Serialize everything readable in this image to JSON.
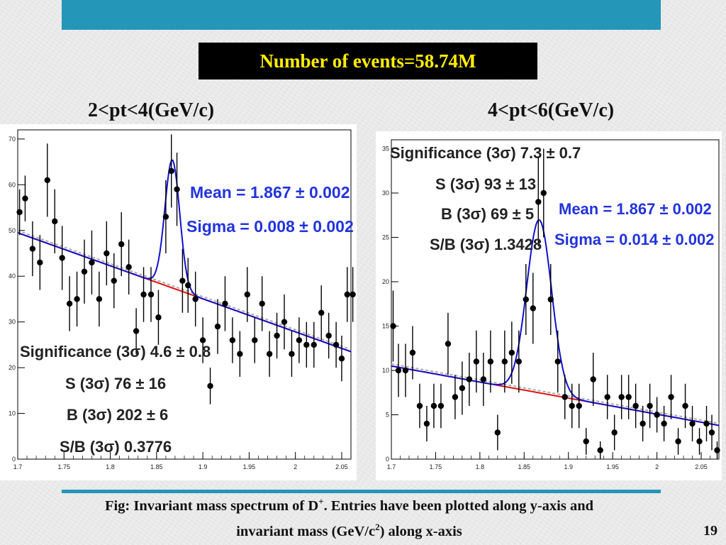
{
  "slide": {
    "events_title": "Number of events=58.74M",
    "caption_line1_a": "Fig: Invariant mass spectrum of D",
    "caption_line1_sup": "+",
    "caption_line1_b": ". Entries have been plotted along y-axis and",
    "caption_line2_a": "invariant mass (GeV/c",
    "caption_line2_sup": "2",
    "caption_line2_b": ") along x-axis",
    "page_number": "19"
  },
  "colors": {
    "banner": "#2496b8",
    "fit_line": "#1010d0",
    "background_fit": "#e01010",
    "stat_text": "#2233dd"
  },
  "chart_data": [
    {
      "type": "scatter",
      "bin_label": "2<pt<4(GeV/c)",
      "xlim": [
        1.7,
        2.06
      ],
      "ylim": [
        0,
        72
      ],
      "x_ticks": [
        "1.7",
        "1.75",
        "1.8",
        "1.85",
        "1.9",
        "1.95",
        "2",
        "2.05"
      ],
      "x_tick_values": [
        1.7,
        1.75,
        1.8,
        1.85,
        1.9,
        1.95,
        2,
        2.05
      ],
      "y_ticks": [
        "0",
        "10",
        "20",
        "30",
        "40",
        "50",
        "60",
        "70"
      ],
      "y_tick_values": [
        0,
        10,
        20,
        30,
        40,
        50,
        60,
        70
      ],
      "points": [
        {
          "x": 1.702,
          "y": 54,
          "err": 5
        },
        {
          "x": 1.708,
          "y": 57,
          "err": 5
        },
        {
          "x": 1.716,
          "y": 46,
          "err": 6
        },
        {
          "x": 1.724,
          "y": 43,
          "err": 6
        },
        {
          "x": 1.732,
          "y": 61,
          "err": 8
        },
        {
          "x": 1.74,
          "y": 52,
          "err": 7
        },
        {
          "x": 1.748,
          "y": 44,
          "err": 7
        },
        {
          "x": 1.756,
          "y": 34,
          "err": 6
        },
        {
          "x": 1.764,
          "y": 35,
          "err": 6
        },
        {
          "x": 1.772,
          "y": 41,
          "err": 7
        },
        {
          "x": 1.78,
          "y": 43,
          "err": 7
        },
        {
          "x": 1.788,
          "y": 35,
          "err": 6
        },
        {
          "x": 1.796,
          "y": 45,
          "err": 7
        },
        {
          "x": 1.804,
          "y": 39,
          "err": 6
        },
        {
          "x": 1.812,
          "y": 47,
          "err": 7
        },
        {
          "x": 1.82,
          "y": 42,
          "err": 6
        },
        {
          "x": 1.828,
          "y": 28,
          "err": 5
        },
        {
          "x": 1.836,
          "y": 36,
          "err": 6
        },
        {
          "x": 1.844,
          "y": 36,
          "err": 6
        },
        {
          "x": 1.852,
          "y": 31,
          "err": 6
        },
        {
          "x": 1.86,
          "y": 53,
          "err": 8
        },
        {
          "x": 1.866,
          "y": 63,
          "err": 8
        },
        {
          "x": 1.872,
          "y": 59,
          "err": 8
        },
        {
          "x": 1.878,
          "y": 39,
          "err": 7
        },
        {
          "x": 1.884,
          "y": 38,
          "err": 6
        },
        {
          "x": 1.892,
          "y": 35,
          "err": 6
        },
        {
          "x": 1.9,
          "y": 26,
          "err": 5
        },
        {
          "x": 1.908,
          "y": 16,
          "err": 4
        },
        {
          "x": 1.916,
          "y": 29,
          "err": 6
        },
        {
          "x": 1.924,
          "y": 34,
          "err": 6
        },
        {
          "x": 1.932,
          "y": 26,
          "err": 5
        },
        {
          "x": 1.94,
          "y": 23,
          "err": 5
        },
        {
          "x": 1.948,
          "y": 36,
          "err": 6
        },
        {
          "x": 1.956,
          "y": 26,
          "err": 5
        },
        {
          "x": 1.964,
          "y": 34,
          "err": 6
        },
        {
          "x": 1.972,
          "y": 23,
          "err": 5
        },
        {
          "x": 1.98,
          "y": 27,
          "err": 5
        },
        {
          "x": 1.988,
          "y": 30,
          "err": 6
        },
        {
          "x": 1.996,
          "y": 23,
          "err": 5
        },
        {
          "x": 2.004,
          "y": 26,
          "err": 5
        },
        {
          "x": 2.012,
          "y": 25,
          "err": 5
        },
        {
          "x": 2.02,
          "y": 25,
          "err": 5
        },
        {
          "x": 2.028,
          "y": 32,
          "err": 6
        },
        {
          "x": 2.036,
          "y": 27,
          "err": 5
        },
        {
          "x": 2.044,
          "y": 25,
          "err": 5
        },
        {
          "x": 2.05,
          "y": 22,
          "err": 5
        },
        {
          "x": 2.056,
          "y": 36,
          "err": 6
        },
        {
          "x": 2.062,
          "y": 36,
          "err": 6
        }
      ],
      "fit": {
        "mean": 1.867,
        "sigma": 0.008,
        "amp": 28,
        "bg_start": 49.5,
        "bg_end": 23.5
      },
      "stats": {
        "mean": "Mean = 1.867 ± 0.002",
        "sigma": "Sigma = 0.008 ± 0.002",
        "significance": "Significance (3σ) 4.6 ± 0.8",
        "s": "S (3σ) 76 ± 16",
        "b": "B (3σ) 202 ± 6",
        "sb": "S/B (3σ) 0.3776"
      }
    },
    {
      "type": "scatter",
      "bin_label": "4<pt<6(GeV/c)",
      "xlim": [
        1.7,
        2.07
      ],
      "ylim": [
        0,
        36
      ],
      "x_ticks": [
        "1.7",
        "1.75",
        "1.8",
        "1.85",
        "1.9",
        "1.95",
        "2",
        "2.05"
      ],
      "x_tick_values": [
        1.7,
        1.75,
        1.8,
        1.85,
        1.9,
        1.95,
        2,
        2.05
      ],
      "y_ticks": [
        "0",
        "5",
        "10",
        "15",
        "20",
        "25",
        "30",
        "35"
      ],
      "y_tick_values": [
        0,
        5,
        10,
        15,
        20,
        25,
        30,
        35
      ],
      "points": [
        {
          "x": 1.702,
          "y": 15,
          "err": 4
        },
        {
          "x": 1.708,
          "y": 10,
          "err": 3
        },
        {
          "x": 1.716,
          "y": 10,
          "err": 3
        },
        {
          "x": 1.724,
          "y": 12,
          "err": 3
        },
        {
          "x": 1.732,
          "y": 6,
          "err": 2.5
        },
        {
          "x": 1.74,
          "y": 4,
          "err": 2
        },
        {
          "x": 1.748,
          "y": 6,
          "err": 2.5
        },
        {
          "x": 1.756,
          "y": 6,
          "err": 2.5
        },
        {
          "x": 1.764,
          "y": 13,
          "err": 3.5
        },
        {
          "x": 1.772,
          "y": 7,
          "err": 2.5
        },
        {
          "x": 1.78,
          "y": 8,
          "err": 3
        },
        {
          "x": 1.788,
          "y": 9,
          "err": 3
        },
        {
          "x": 1.796,
          "y": 11,
          "err": 3.5
        },
        {
          "x": 1.804,
          "y": 9,
          "err": 3
        },
        {
          "x": 1.812,
          "y": 11,
          "err": 3.5
        },
        {
          "x": 1.82,
          "y": 3,
          "err": 2
        },
        {
          "x": 1.828,
          "y": 11,
          "err": 3.5
        },
        {
          "x": 1.836,
          "y": 12,
          "err": 3.5
        },
        {
          "x": 1.844,
          "y": 11,
          "err": 3.5
        },
        {
          "x": 1.852,
          "y": 18,
          "err": 4
        },
        {
          "x": 1.86,
          "y": 17,
          "err": 4
        },
        {
          "x": 1.866,
          "y": 29,
          "err": 5
        },
        {
          "x": 1.872,
          "y": 30,
          "err": 5
        },
        {
          "x": 1.88,
          "y": 18,
          "err": 4
        },
        {
          "x": 1.888,
          "y": 11,
          "err": 3.5
        },
        {
          "x": 1.896,
          "y": 7,
          "err": 2.5
        },
        {
          "x": 1.904,
          "y": 6,
          "err": 2.5
        },
        {
          "x": 1.912,
          "y": 6,
          "err": 2.5
        },
        {
          "x": 1.92,
          "y": 2,
          "err": 1.5
        },
        {
          "x": 1.928,
          "y": 9,
          "err": 3
        },
        {
          "x": 1.936,
          "y": 1,
          "err": 1
        },
        {
          "x": 1.944,
          "y": 7,
          "err": 2.5
        },
        {
          "x": 1.952,
          "y": 3,
          "err": 2
        },
        {
          "x": 1.96,
          "y": 7,
          "err": 2.5
        },
        {
          "x": 1.968,
          "y": 7,
          "err": 2.5
        },
        {
          "x": 1.976,
          "y": 6,
          "err": 2.5
        },
        {
          "x": 1.984,
          "y": 4,
          "err": 2
        },
        {
          "x": 1.992,
          "y": 6,
          "err": 2.5
        },
        {
          "x": 2.0,
          "y": 5,
          "err": 2
        },
        {
          "x": 2.008,
          "y": 4,
          "err": 2
        },
        {
          "x": 2.016,
          "y": 7,
          "err": 2.5
        },
        {
          "x": 2.024,
          "y": 2,
          "err": 1.5
        },
        {
          "x": 2.032,
          "y": 6,
          "err": 2.5
        },
        {
          "x": 2.04,
          "y": 4,
          "err": 2
        },
        {
          "x": 2.048,
          "y": 2,
          "err": 1.5
        },
        {
          "x": 2.056,
          "y": 4,
          "err": 2
        },
        {
          "x": 2.062,
          "y": 3,
          "err": 2
        },
        {
          "x": 2.068,
          "y": 1,
          "err": 1
        }
      ],
      "fit": {
        "mean": 1.867,
        "sigma": 0.014,
        "amp": 19.5,
        "bg_start": 10.5,
        "bg_end": 3.8
      },
      "stats": {
        "significance": "Significance (3σ) 7.3 ± 0.7",
        "s": "S (3σ) 93 ± 13",
        "b": "B (3σ) 69 ± 5",
        "sb": "S/B (3σ) 1.3428",
        "mean": "Mean = 1.867 ± 0.002",
        "sigma": "Sigma = 0.014 ± 0.002"
      }
    }
  ]
}
